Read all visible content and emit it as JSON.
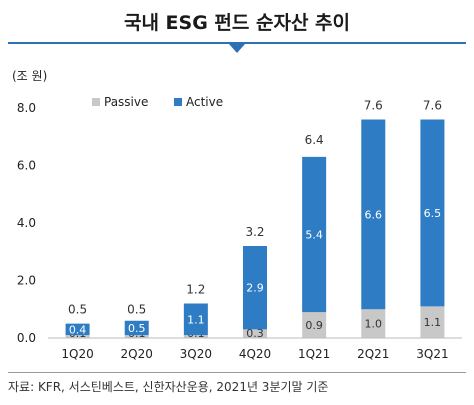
{
  "header": {
    "title": "국내 ESG 펀드 순자산 추이"
  },
  "footer": {
    "source": "자료: KFR, 서스틴베스트, 신한자산운용, 2021년 3분기말 기준"
  },
  "chart_data": {
    "type": "bar",
    "stacked": true,
    "unit_label": "(조 원)",
    "categories": [
      "1Q20",
      "2Q20",
      "3Q20",
      "4Q20",
      "1Q21",
      "2Q21",
      "3Q21"
    ],
    "series": [
      {
        "name": "Passive",
        "color": "#c8c8c8",
        "values": [
          0.1,
          0.1,
          0.1,
          0.3,
          0.9,
          1.0,
          1.1
        ]
      },
      {
        "name": "Active",
        "color": "#2e7cc4",
        "values": [
          0.4,
          0.5,
          1.1,
          2.9,
          5.4,
          6.6,
          6.5
        ]
      }
    ],
    "totals": [
      0.5,
      0.5,
      1.2,
      3.2,
      6.4,
      7.6,
      7.6
    ],
    "ylim": [
      0,
      8
    ],
    "yticks": [
      "0.0",
      "2.0",
      "4.0",
      "6.0",
      "8.0"
    ],
    "ytick_values": [
      0,
      2,
      4,
      6,
      8
    ],
    "legend_position": "top-left",
    "grid": false
  }
}
